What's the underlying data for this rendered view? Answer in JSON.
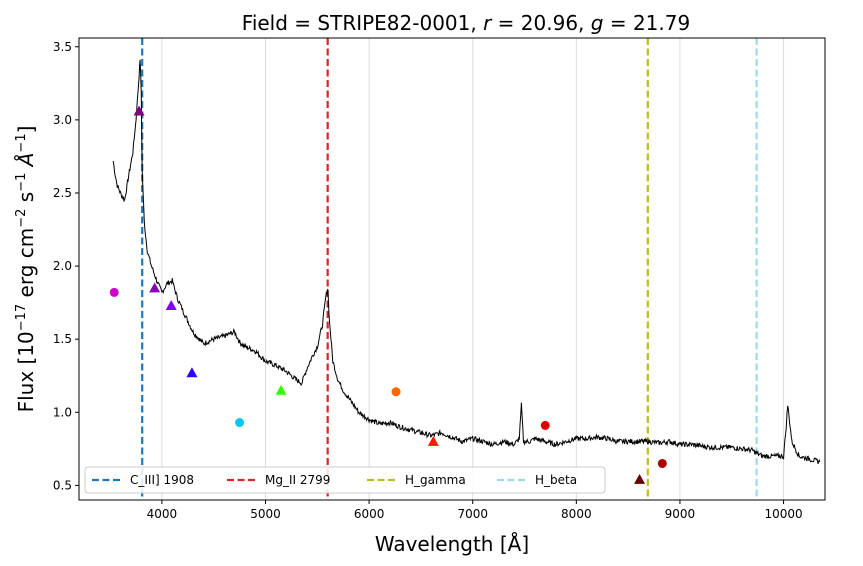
{
  "chart_data": {
    "type": "line",
    "title": {
      "prefix": "Field = STRIPE82-0001, ",
      "r_symbol": "r",
      "r_text": " = 20.96, ",
      "g_symbol": "g",
      "g_text": " = 21.79"
    },
    "xlabel": "Wavelength [Å]",
    "ylabel": {
      "pre": "Flux [10",
      "exp1": "−17",
      "mid": " erg cm",
      "exp2": "−2",
      "mid2": " s",
      "exp3": "−1",
      "unit": " Å",
      "exp4": "−1",
      "post": "]"
    },
    "xlim": [
      3200,
      10400
    ],
    "ylim": [
      0.4,
      3.56
    ],
    "xticks": [
      4000,
      5000,
      6000,
      7000,
      8000,
      9000,
      10000
    ],
    "yticks": [
      0.5,
      1.0,
      1.5,
      2.0,
      2.5,
      3.0,
      3.5
    ],
    "xtick_labels": [
      "4000",
      "5000",
      "6000",
      "7000",
      "8000",
      "9000",
      "10000"
    ],
    "ytick_labels": [
      "0.5",
      "1.0",
      "1.5",
      "2.0",
      "2.5",
      "3.0",
      "3.5"
    ],
    "vertical_grid": true,
    "spectrum": {
      "color": "#000000",
      "x": [
        3530,
        3550,
        3570,
        3600,
        3640,
        3680,
        3720,
        3750,
        3775,
        3790,
        3800,
        3810,
        3830,
        3860,
        3900,
        3950,
        4000,
        4050,
        4100,
        4150,
        4200,
        4300,
        4400,
        4500,
        4600,
        4700,
        4750,
        4800,
        4900,
        5000,
        5100,
        5200,
        5300,
        5350,
        5400,
        5450,
        5500,
        5550,
        5580,
        5600,
        5620,
        5650,
        5700,
        5750,
        5800,
        5850,
        5900,
        6000,
        6100,
        6200,
        6300,
        6400,
        6500,
        6600,
        6700,
        6800,
        6900,
        7000,
        7100,
        7200,
        7300,
        7400,
        7450,
        7470,
        7490,
        7550,
        7600,
        7700,
        7800,
        7900,
        8000,
        8100,
        8200,
        8300,
        8400,
        8500,
        8600,
        8700,
        8800,
        8900,
        9000,
        9100,
        9200,
        9300,
        9400,
        9500,
        9600,
        9700,
        9740,
        9800,
        9900,
        10000,
        10020,
        10040,
        10080,
        10150,
        10250,
        10350
      ],
      "y": [
        2.72,
        2.62,
        2.55,
        2.5,
        2.45,
        2.62,
        2.78,
        3.0,
        3.25,
        3.42,
        3.2,
        2.65,
        2.3,
        2.1,
        2.0,
        1.9,
        1.82,
        1.88,
        1.9,
        1.78,
        1.7,
        1.55,
        1.47,
        1.5,
        1.52,
        1.55,
        1.48,
        1.45,
        1.42,
        1.35,
        1.32,
        1.28,
        1.22,
        1.2,
        1.3,
        1.38,
        1.45,
        1.6,
        1.78,
        1.85,
        1.6,
        1.35,
        1.22,
        1.15,
        1.1,
        1.05,
        1.0,
        0.95,
        0.92,
        0.93,
        0.9,
        0.88,
        0.86,
        0.84,
        0.86,
        0.83,
        0.8,
        0.82,
        0.8,
        0.78,
        0.8,
        0.78,
        0.82,
        1.05,
        0.8,
        0.8,
        0.82,
        0.8,
        0.78,
        0.8,
        0.82,
        0.82,
        0.83,
        0.82,
        0.8,
        0.8,
        0.8,
        0.8,
        0.79,
        0.8,
        0.78,
        0.78,
        0.77,
        0.76,
        0.76,
        0.76,
        0.75,
        0.74,
        0.72,
        0.7,
        0.7,
        0.7,
        0.85,
        1.05,
        0.8,
        0.7,
        0.68,
        0.66
      ]
    },
    "photometry": [
      {
        "x": 3540,
        "y": 1.82,
        "color": "#cc00cc",
        "shape": "circle"
      },
      {
        "x": 3780,
        "y": 3.06,
        "color": "#800080",
        "shape": "triangle"
      },
      {
        "x": 3930,
        "y": 1.85,
        "color": "#8800bb",
        "shape": "triangle"
      },
      {
        "x": 4090,
        "y": 1.73,
        "color": "#8000ff",
        "shape": "triangle"
      },
      {
        "x": 4290,
        "y": 1.27,
        "color": "#3300ff",
        "shape": "triangle"
      },
      {
        "x": 4750,
        "y": 0.93,
        "color": "#00c8f0",
        "shape": "circle"
      },
      {
        "x": 5150,
        "y": 1.15,
        "color": "#33ff00",
        "shape": "triangle"
      },
      {
        "x": 6260,
        "y": 1.14,
        "color": "#ff6600",
        "shape": "circle"
      },
      {
        "x": 6620,
        "y": 0.8,
        "color": "#ff1a00",
        "shape": "triangle"
      },
      {
        "x": 7700,
        "y": 0.91,
        "color": "#dd0000",
        "shape": "circle"
      },
      {
        "x": 8610,
        "y": 0.54,
        "color": "#660000",
        "shape": "triangle"
      },
      {
        "x": 8830,
        "y": 0.65,
        "color": "#aa0000",
        "shape": "circle"
      }
    ],
    "lines": [
      {
        "name": "C_III] 1908",
        "x": 3810,
        "color": "#1f77b4"
      },
      {
        "name": "Mg_II 2799",
        "x": 5600,
        "color": "#d62728"
      },
      {
        "name": "H_gamma",
        "x": 8690,
        "color": "#bcbd22"
      },
      {
        "name": "H_beta",
        "x": 9740,
        "color": "#9edae5"
      }
    ],
    "legend_position": "lower-left"
  }
}
